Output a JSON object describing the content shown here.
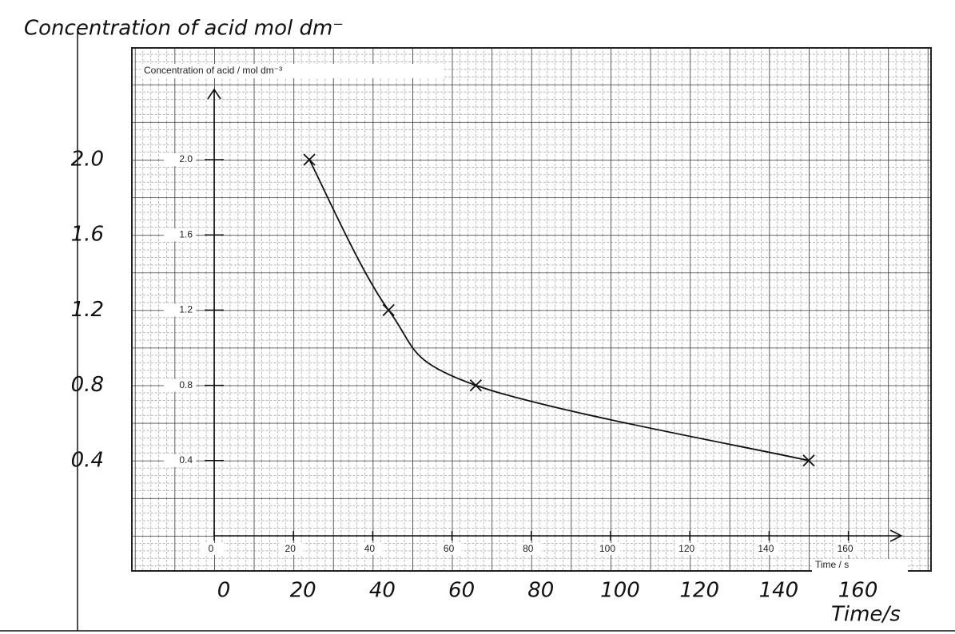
{
  "chart_data": {
    "type": "line",
    "title": "Concentration of acid mol dm⁻",
    "paper_title": "Concentration of acid / mol dm⁻³",
    "x_label": "Time/s",
    "paper_x_label": "Time / s",
    "x": [
      24,
      44,
      66,
      150
    ],
    "values": [
      {
        "value": 2.0,
        "label": "2.0"
      },
      1.2,
      0.8,
      0.4
    ],
    "color": "#111111",
    "xlim": [
      0,
      160
    ],
    "ylim": [
      0,
      2.0
    ],
    "xticks": [
      0,
      20,
      40,
      60,
      80,
      100,
      120,
      140,
      160
    ],
    "yticks": [
      0.4,
      0.8,
      1.2,
      1.6,
      {
        "value": 2.0,
        "label": "2.0"
      }
    ],
    "grid": true
  }
}
